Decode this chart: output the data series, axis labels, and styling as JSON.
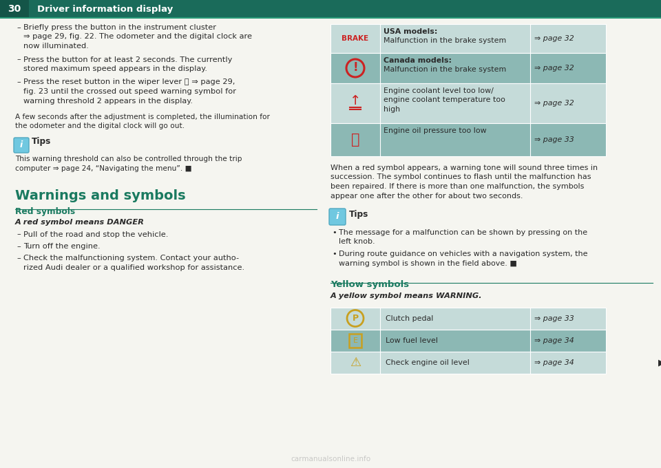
{
  "page_num": "30",
  "header_title": "Driver information display",
  "header_bg": "#1a6b5a",
  "bg_color": "#f5f5f0",
  "text_color": "#333333",
  "dark_text": "#2a2a2a",
  "teal_color": "#1a7a60",
  "left_bullets": [
    [
      "Briefly press the button in the instrument cluster",
      "⇒ page 29, fig. 22. The odometer and the digital clock are",
      "now illuminated."
    ],
    [
      "Press the button for at least 2 seconds. The currently",
      "stored maximum speed appears in the display."
    ],
    [
      "Press the reset button in the wiper lever Ⓑ ⇒ page 29,",
      "fig. 23 until the crossed out speed warning symbol for",
      "warning threshold 2 appears in the display."
    ]
  ],
  "left_note_lines": [
    "A few seconds after the adjustment is completed, the illumination for",
    "the odometer and the digital clock will go out."
  ],
  "tips_left_body": [
    "This warning threshold can also be controlled through the trip",
    "computer ⇒ page 24, “Navigating the menu”. ■"
  ],
  "warnings_title": "Warnings and symbols",
  "red_symbols_title": "Red symbols",
  "red_italic": "A red symbol means DANGER",
  "red_bullets": [
    [
      "Pull of the road and stop the vehicle."
    ],
    [
      "Turn off the engine."
    ],
    [
      "Check the malfunctioning system. Contact your autho-",
      "rized Audi dealer or a qualified workshop for assistance."
    ]
  ],
  "table_bg_light": "#c5dbd9",
  "table_bg_dark": "#8cb8b4",
  "right_body_lines": [
    "When a red symbol appears, a warning tone will sound three times in",
    "succession. The symbol continues to flash until the malfunction has",
    "been repaired. If there is more than one malfunction, the symbols",
    "appear one after the other for about two seconds."
  ],
  "tips_right_lines1": [
    "The message for a malfunction can be shown by pressing on the",
    "left knob."
  ],
  "tips_right_lines2": [
    "During route guidance on vehicles with a navigation system, the",
    "warning symbol is shown in the field above. ■"
  ],
  "yellow_symbols_title": "Yellow symbols",
  "yellow_italic": "A yellow symbol means WARNING.",
  "watermark": "carmanualsonline.info"
}
